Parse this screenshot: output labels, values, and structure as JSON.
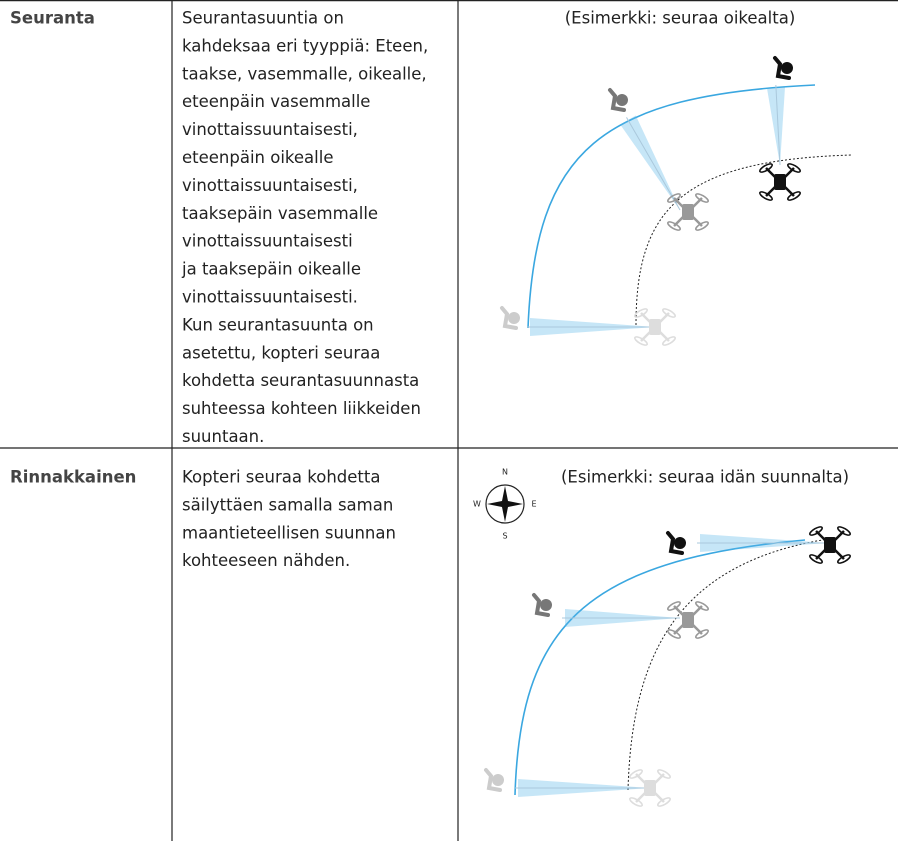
{
  "rows": [
    {
      "mode": "Seuranta",
      "description": [
        "Seurantasuuntia on",
        "kahdeksaa eri tyyppiä: Eteen,",
        "taakse, vasemmalle, oikealle,",
        "eteenpäin vasemmalle",
        "vinottaissuuntaisesti,",
        "eteenpäin oikealle",
        "vinottaissuuntaisesti,",
        "taaksepäin vasemmalle",
        "vinottaissuuntaisesti",
        "ja taaksepäin oikealle",
        "vinottaissuuntaisesti.",
        "Kun seurantasuunta on",
        "asetettu, kopteri seuraa",
        "kohdetta seurantasuunnasta",
        "suhteessa kohteen liikkeiden",
        "suuntaan."
      ],
      "caption": "(Esimerkki: seuraa oikealta)"
    },
    {
      "mode": "Rinnakkainen",
      "description": [
        "Kopteri seuraa kohdetta",
        "säilyttäen samalla saman",
        "maantieteellisen suunnan",
        "kohteeseen nähden."
      ],
      "caption": "(Esimerkki: seuraa idän suunnalta)",
      "compass": {
        "n": "N",
        "e": "E",
        "s": "S",
        "w": "W"
      }
    }
  ]
}
